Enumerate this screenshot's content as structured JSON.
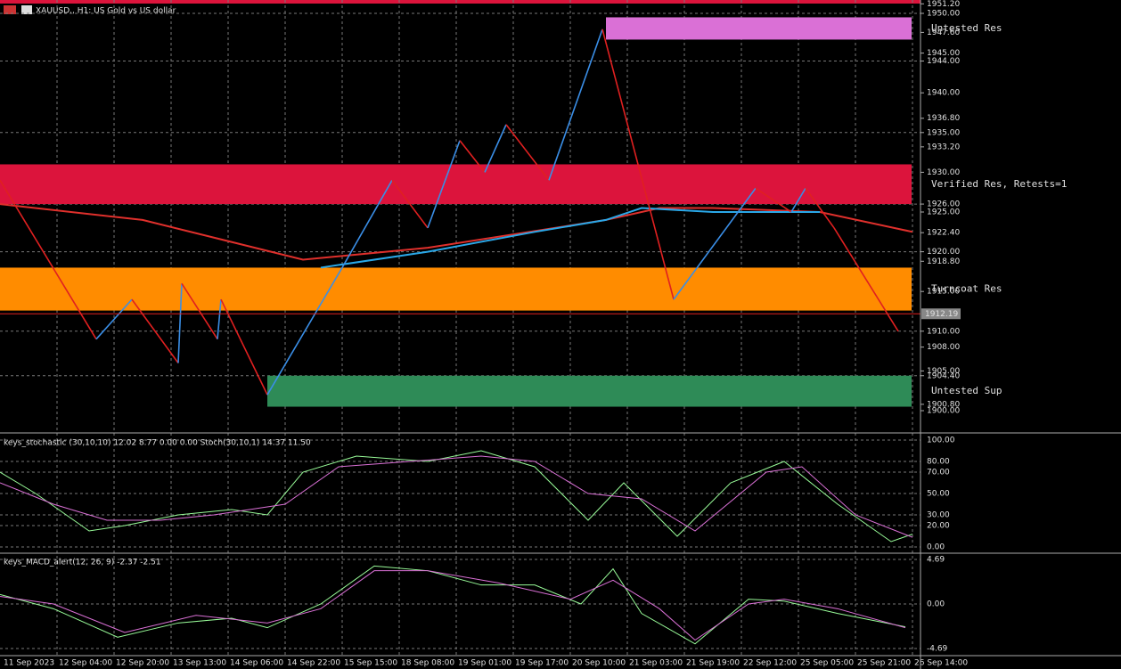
{
  "header": {
    "title": "XAUUSD., H1: US Gold vs US dollar"
  },
  "price_axis": [
    {
      "value": 1951.2,
      "label": "1951.20"
    },
    {
      "value": 1950,
      "label": "1950.00"
    },
    {
      "value": 1947.6,
      "label": "1947.60"
    },
    {
      "value": 1945,
      "label": "1945.00"
    },
    {
      "value": 1944,
      "label": "1944.00"
    },
    {
      "value": 1940,
      "label": "1940.00"
    },
    {
      "value": 1936.8,
      "label": "1936.80"
    },
    {
      "value": 1935,
      "label": "1935.00"
    },
    {
      "value": 1933.2,
      "label": "1933.20"
    },
    {
      "value": 1930,
      "label": "1930.00"
    },
    {
      "value": 1926,
      "label": "1926.00"
    },
    {
      "value": 1925,
      "label": "1925.00"
    },
    {
      "value": 1922.4,
      "label": "1922.40"
    },
    {
      "value": 1920,
      "label": "1920.00"
    },
    {
      "value": 1918.8,
      "label": "1918.80"
    },
    {
      "value": 1915,
      "label": "1915.00"
    },
    {
      "value": 1910,
      "label": "1910.00"
    },
    {
      "value": 1908,
      "label": "1908.00"
    },
    {
      "value": 1905,
      "label": "1905.00"
    },
    {
      "value": 1904.4,
      "label": "1904.40"
    },
    {
      "value": 1900.8,
      "label": "1900.80"
    },
    {
      "value": 1900,
      "label": "1900.00"
    }
  ],
  "current_price": {
    "value": 1912.19,
    "label": "1912.19"
  },
  "time_axis": [
    "11 Sep 2023",
    "12 Sep 04:00",
    "12 Sep 20:00",
    "13 Sep 13:00",
    "14 Sep 06:00",
    "14 Sep 22:00",
    "15 Sep 15:00",
    "18 Sep 08:00",
    "19 Sep 01:00",
    "19 Sep 17:00",
    "20 Sep 10:00",
    "21 Sep 03:00",
    "21 Sep 19:00",
    "22 Sep 12:00",
    "25 Sep 05:00",
    "25 Sep 21:00",
    "26 Sep 14:00"
  ],
  "zones": [
    {
      "label": "Untested Res",
      "top": 1949.5,
      "bottom": 1946.7,
      "start_bar": 170,
      "color": "#da70d6"
    },
    {
      "label": "Verified Res, Retests=1",
      "top": 1931,
      "bottom": 1926,
      "start_bar": 0,
      "color": "#dc143c"
    },
    {
      "label": "Turncoat Res",
      "top": 1918,
      "bottom": 1912.6,
      "start_bar": 0,
      "color": "#ff8c00"
    },
    {
      "label": "Untested Sup",
      "top": 1904.4,
      "bottom": 1900.5,
      "start_bar": 75,
      "color": "#2e8b57"
    }
  ],
  "zigzag": {
    "bars": [
      0,
      27,
      37,
      50,
      51,
      61,
      62,
      75,
      96,
      110,
      120,
      129,
      136,
      142,
      154,
      169,
      189,
      212,
      222,
      226,
      234,
      252
    ],
    "prices": [
      1929,
      1909,
      1914,
      1906,
      1916,
      1909,
      1914,
      1902,
      1918,
      1929,
      1923,
      1934,
      1930,
      1936,
      1929,
      1948,
      1914,
      1928,
      1925,
      1928,
      1923,
      1910
    ]
  },
  "moving_averages": [
    {
      "color": "#e0302c",
      "bars": [
        0,
        40,
        85,
        120,
        170,
        185,
        200,
        230,
        256
      ],
      "prices": [
        1926,
        1924,
        1919,
        1920.5,
        1924,
        1925.5,
        1925.5,
        1925,
        1922.5
      ]
    },
    {
      "color": "#2aa8e8",
      "bars": [
        90,
        120,
        150,
        170,
        180,
        200,
        230
      ],
      "prices": [
        1918,
        1920,
        1922.5,
        1924,
        1925.5,
        1925,
        1925
      ]
    }
  ],
  "stochastic": {
    "title": "keys_stochastic (30,10,10) 12.02 8.77 0.00 0.00 Stoch(30,10,1) 14.37 11.50",
    "axis": [
      {
        "value": 100,
        "label": "100.00"
      },
      {
        "value": 80,
        "label": "80.00"
      },
      {
        "value": 70,
        "label": "70.00"
      },
      {
        "value": 50,
        "label": "50.00"
      },
      {
        "value": 30,
        "label": "30.00"
      },
      {
        "value": 20,
        "label": "20.00"
      },
      {
        "value": 0,
        "label": "0.00"
      }
    ],
    "lines": [
      {
        "color": "#98fb98",
        "bars": [
          0,
          10,
          25,
          35,
          50,
          65,
          75,
          85,
          100,
          120,
          135,
          150,
          165,
          175,
          190,
          205,
          220,
          235,
          250,
          256
        ],
        "values": [
          70,
          50,
          15,
          20,
          30,
          35,
          30,
          70,
          85,
          80,
          90,
          75,
          25,
          60,
          10,
          60,
          80,
          40,
          5,
          12
        ]
      },
      {
        "color": "#da70d6",
        "bars": [
          0,
          15,
          30,
          45,
          60,
          80,
          95,
          115,
          135,
          150,
          165,
          180,
          195,
          215,
          225,
          240,
          256
        ],
        "values": [
          60,
          40,
          25,
          25,
          30,
          40,
          75,
          80,
          85,
          80,
          50,
          45,
          15,
          70,
          75,
          30,
          9
        ]
      }
    ]
  },
  "macd": {
    "title": "keys_MACD_alert(12, 26, 9) -2.37 -2.51",
    "axis": [
      {
        "value": 4.69,
        "label": "4.69"
      },
      {
        "value": 0,
        "label": "0.00"
      },
      {
        "value": -4.69,
        "label": "-4.69"
      }
    ],
    "lines": [
      {
        "color": "#98fb98",
        "bars": [
          0,
          15,
          33,
          50,
          65,
          75,
          90,
          105,
          120,
          135,
          150,
          163,
          172,
          180,
          195,
          210,
          220,
          235,
          254
        ],
        "values": [
          1,
          -0.5,
          -3.5,
          -2,
          -1.5,
          -2.5,
          0,
          4,
          3.5,
          2,
          2,
          0,
          3.7,
          -1,
          -4.2,
          0.5,
          0.3,
          -1,
          -2.4
        ]
      },
      {
        "color": "#da70d6",
        "bars": [
          0,
          15,
          35,
          55,
          75,
          90,
          105,
          120,
          140,
          160,
          172,
          185,
          195,
          210,
          220,
          235,
          254
        ],
        "values": [
          0.8,
          0,
          -3,
          -1.2,
          -2,
          -0.5,
          3.5,
          3.5,
          2.2,
          0.5,
          2.5,
          -0.5,
          -3.8,
          0,
          0.5,
          -0.5,
          -2.5
        ]
      }
    ]
  }
}
